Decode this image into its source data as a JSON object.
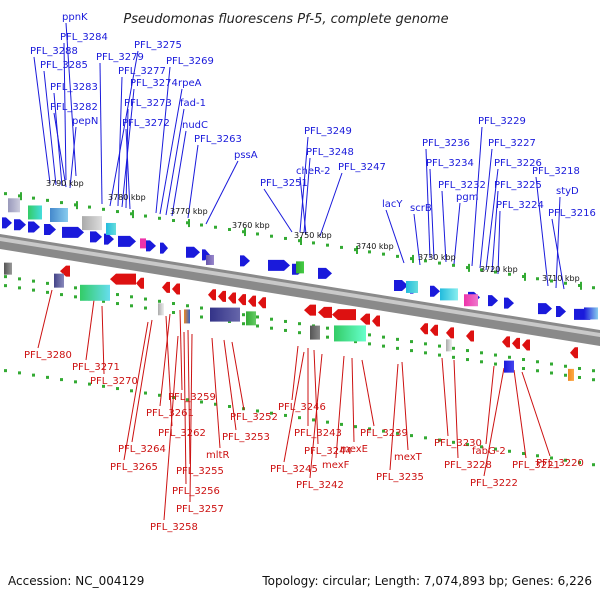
{
  "title": "Pseudomonas fluorescens Pf-5, complete genome",
  "footer": {
    "accession": "Accession: NC_004129",
    "topology": "Topology: circular; Length: 7,074,893 bp; Genes: 6,226"
  },
  "ruler": [
    "3790 kbp",
    "3780 kbp",
    "3770 kbp",
    "3760 kbp",
    "3750 kbp",
    "3740 kbp",
    "3730 kbp",
    "3720 kbp",
    "3710 kbp"
  ],
  "labels_top": [
    "ppnK",
    "PFL_3284",
    "PFL_3288",
    "PFL_3285",
    "PFL_3283",
    "PFL_3282",
    "pepN",
    "PFL_3275",
    "PFL_3279",
    "PFL_3277",
    "PFL_3274",
    "PFL_3273",
    "PFL_3272",
    "PFL_3269",
    "rpeA",
    "fad-1",
    "nudC",
    "PFL_3263",
    "pssA",
    "PFL_3251",
    "PFL_3249",
    "PFL_3248",
    "cheR-2",
    "PFL_3247",
    "lacY",
    "scrB",
    "PFL_3236",
    "PFL_3234",
    "PFL_3232",
    "pgm",
    "PFL_3229",
    "PFL_3227",
    "PFL_3226",
    "PFL_3225",
    "PFL_3224",
    "PFL_3218",
    "styD",
    "PFL_3216"
  ],
  "labels_bottom": [
    "PFL_3280",
    "PFL_3271",
    "PFL_3270",
    "PFL_3259",
    "PFL_3261",
    "PFL_3262",
    "PFL_3264",
    "PFL_3265",
    "PFL_3255",
    "PFL_3256",
    "PFL_3257",
    "PFL_3258",
    "mltR",
    "PFL_3253",
    "PFL_3252",
    "PFL_3246",
    "PFL_3243",
    "PFL_3244",
    "PFL_3245",
    "PFL_3242",
    "mexF",
    "mexE",
    "PFL_3239",
    "mexT",
    "PFL_3235",
    "PFL_3230",
    "PFL_3228",
    "fabG-2",
    "PFL_3222",
    "PFL_3221",
    "PFL_3220"
  ],
  "colors": {
    "forward_gene": "#1a1adb",
    "reverse_gene": "#dd1111",
    "backbone": "#888888",
    "ticks": "#33aa33"
  }
}
